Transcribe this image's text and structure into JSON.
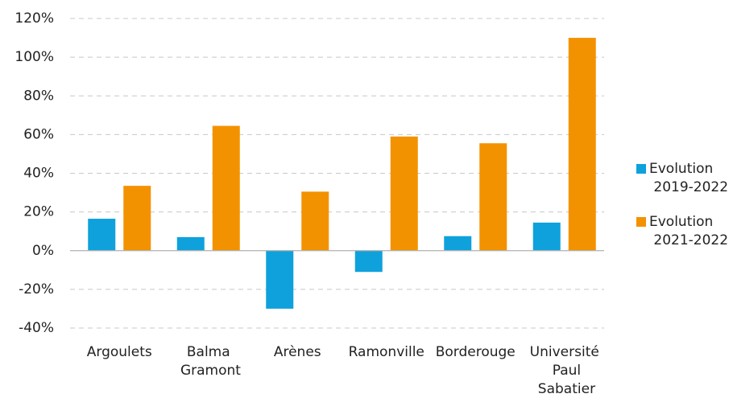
{
  "chart_data": {
    "type": "bar",
    "categories": [
      "Argoulets",
      "Balma Gramont",
      "Arènes",
      "Ramonville",
      "Borderouge",
      "Université Paul Sabatier"
    ],
    "series": [
      {
        "name": "Evolution 2019-2022",
        "color": "#0ea1dc",
        "values": [
          16.5,
          7,
          -30,
          -11,
          7.5,
          14.5
        ]
      },
      {
        "name": "Evolution 2021-2022",
        "color": "#f39200",
        "values": [
          33.5,
          64.5,
          30.5,
          59,
          55.5,
          110
        ]
      }
    ],
    "ylim": [
      -40,
      120
    ],
    "yticks": [
      {
        "value": -40,
        "label": "-40%"
      },
      {
        "value": -20,
        "label": "-20%"
      },
      {
        "value": 0,
        "label": "0%"
      },
      {
        "value": 20,
        "label": "20%"
      },
      {
        "value": 40,
        "label": "40%"
      },
      {
        "value": 60,
        "label": "60%"
      },
      {
        "value": 80,
        "label": "80%"
      },
      {
        "value": 100,
        "label": "100%"
      },
      {
        "value": 120,
        "label": "120%"
      }
    ],
    "grid": true,
    "legend": "right"
  }
}
